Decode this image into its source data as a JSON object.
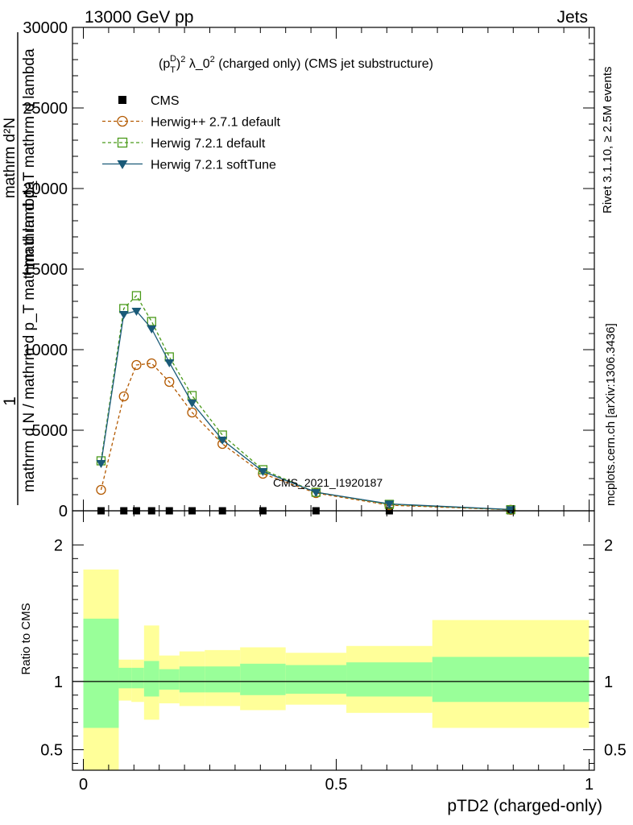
{
  "header": {
    "left": "13000 GeV pp",
    "right": "Jets"
  },
  "side_labels": {
    "rivet": "Rivet 3.1.10, ≥ 2.5M events",
    "mcplots": "mcplots.cern.ch [arXiv:1306.3436]"
  },
  "colors": {
    "cms": "#000000",
    "herwigpp": "#b35900",
    "herwig721": "#4a9a1a",
    "softtune": "#1a5a78",
    "band_inner": "#99ff99",
    "band_outer": "#ffff99"
  },
  "chart_data": [
    {
      "type": "line",
      "panel": "main",
      "title": "(pTD)2 λ_0 2 (charged only) (CMS jet substructure)",
      "title_parts": {
        "p": "(p",
        "sup": "D",
        "sub": "T",
        "rest": ")",
        "sq": "2",
        "mid": " λ_0",
        "sq2": "2",
        "tail": " (charged only) (CMS jet substructure)"
      },
      "ylabel_lines": [
        "1",
        "mathrm d N / mathrm d p_T mathrm d lambda",
        "mathrm d²N",
        "mathrm d p_T mathrm d lambda"
      ],
      "ylim": [
        0,
        30000
      ],
      "yticks": [
        0,
        5000,
        10000,
        15000,
        20000,
        25000,
        30000
      ],
      "ytick_labels": [
        "0",
        "5000",
        "10000",
        "15000",
        "20000",
        "25000",
        "30000"
      ],
      "xlim": [
        0,
        1
      ],
      "watermark": "CMS_2021_I1920187",
      "legend_position": "top-left",
      "series": [
        {
          "name": "CMS",
          "marker": "square-filled",
          "color_key": "cms",
          "x": [
            0.035,
            0.08,
            0.105,
            0.135,
            0.17,
            0.215,
            0.275,
            0.355,
            0.46,
            0.605,
            0.845
          ],
          "y": [
            0,
            0,
            0,
            0,
            0,
            0,
            0,
            0,
            0,
            0,
            0
          ]
        },
        {
          "name": "Herwig++ 2.7.1 default",
          "marker": "circle-open",
          "color_key": "herwigpp",
          "dash": true,
          "x": [
            0.035,
            0.08,
            0.105,
            0.135,
            0.17,
            0.215,
            0.275,
            0.355,
            0.46,
            0.605,
            0.845
          ],
          "y": [
            1300,
            7100,
            9050,
            9150,
            8000,
            6100,
            4150,
            2300,
            1100,
            350,
            60
          ]
        },
        {
          "name": "Herwig 7.2.1 default",
          "marker": "square-open",
          "color_key": "herwig721",
          "dash": true,
          "x": [
            0.035,
            0.08,
            0.105,
            0.135,
            0.17,
            0.215,
            0.275,
            0.355,
            0.46,
            0.605,
            0.845
          ],
          "y": [
            3100,
            12550,
            13350,
            11750,
            9550,
            7150,
            4700,
            2550,
            1150,
            400,
            70
          ]
        },
        {
          "name": "Herwig 7.2.1 softTune",
          "marker": "triangle-down-filled",
          "color_key": "softtune",
          "dash": false,
          "x": [
            0.035,
            0.08,
            0.105,
            0.135,
            0.17,
            0.215,
            0.275,
            0.355,
            0.46,
            0.605,
            0.845
          ],
          "y": [
            2950,
            12200,
            12400,
            11300,
            9200,
            6700,
            4400,
            2450,
            1150,
            430,
            80
          ]
        }
      ]
    },
    {
      "type": "area",
      "panel": "ratio",
      "ylabel": "Ratio to CMS",
      "ylim": [
        0.35,
        2.25
      ],
      "yticks": [
        0.5,
        1,
        2
      ],
      "ytick_labels": [
        "0.5",
        "1",
        "2"
      ],
      "xlim": [
        0,
        1
      ],
      "xticks": [
        0,
        0.5,
        1
      ],
      "xtick_labels": [
        "0",
        "0.5",
        "1"
      ],
      "xlabel": "pTD2 (charged-only)",
      "reference": 1,
      "bins": [
        {
          "x0": 0.0,
          "x1": 0.07,
          "inner": [
            0.66,
            1.46
          ],
          "outer": [
            0.35,
            1.82
          ]
        },
        {
          "x0": 0.07,
          "x1": 0.095,
          "inner": [
            0.95,
            1.1
          ],
          "outer": [
            0.86,
            1.16
          ]
        },
        {
          "x0": 0.095,
          "x1": 0.12,
          "inner": [
            0.95,
            1.1
          ],
          "outer": [
            0.85,
            1.16
          ]
        },
        {
          "x0": 0.12,
          "x1": 0.15,
          "inner": [
            0.89,
            1.15
          ],
          "outer": [
            0.72,
            1.41
          ]
        },
        {
          "x0": 0.15,
          "x1": 0.19,
          "inner": [
            0.94,
            1.09
          ],
          "outer": [
            0.84,
            1.19
          ]
        },
        {
          "x0": 0.19,
          "x1": 0.24,
          "inner": [
            0.92,
            1.11
          ],
          "outer": [
            0.82,
            1.22
          ]
        },
        {
          "x0": 0.24,
          "x1": 0.31,
          "inner": [
            0.92,
            1.11
          ],
          "outer": [
            0.82,
            1.23
          ]
        },
        {
          "x0": 0.31,
          "x1": 0.4,
          "inner": [
            0.9,
            1.13
          ],
          "outer": [
            0.79,
            1.25
          ]
        },
        {
          "x0": 0.4,
          "x1": 0.52,
          "inner": [
            0.91,
            1.12
          ],
          "outer": [
            0.83,
            1.21
          ]
        },
        {
          "x0": 0.52,
          "x1": 0.69,
          "inner": [
            0.89,
            1.14
          ],
          "outer": [
            0.77,
            1.26
          ]
        },
        {
          "x0": 0.69,
          "x1": 1.0,
          "inner": [
            0.85,
            1.18
          ],
          "outer": [
            0.66,
            1.45
          ]
        }
      ]
    }
  ]
}
